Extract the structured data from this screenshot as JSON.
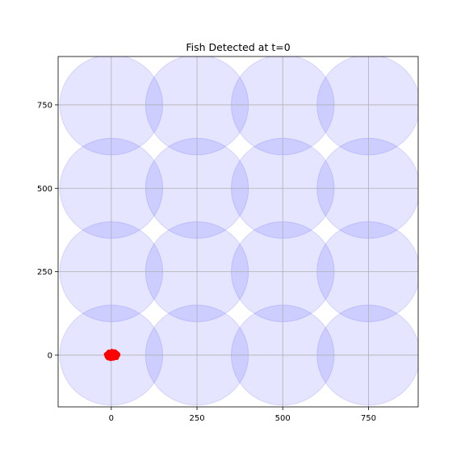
{
  "chart_data": {
    "type": "scatter",
    "title": "Fish Detected at t=0",
    "xlabel": "",
    "ylabel": "",
    "xlim": [
      -155,
      895
    ],
    "ylim": [
      -155,
      895
    ],
    "grid": true,
    "x_ticks": [
      0,
      250,
      500,
      750
    ],
    "y_ticks": [
      0,
      250,
      500,
      750
    ],
    "tick_labels_x": [
      "0",
      "250",
      "500",
      "750"
    ],
    "tick_labels_y": [
      "0",
      "250",
      "500",
      "750"
    ],
    "sensor_circles": {
      "radius": 150,
      "color": "#0000ff",
      "fill_opacity": 0.1,
      "centers": [
        [
          0,
          0
        ],
        [
          250,
          0
        ],
        [
          500,
          0
        ],
        [
          750,
          0
        ],
        [
          0,
          250
        ],
        [
          250,
          250
        ],
        [
          500,
          250
        ],
        [
          750,
          250
        ],
        [
          0,
          500
        ],
        [
          250,
          500
        ],
        [
          500,
          500
        ],
        [
          750,
          500
        ],
        [
          0,
          750
        ],
        [
          250,
          750
        ],
        [
          500,
          750
        ],
        [
          750,
          750
        ]
      ]
    },
    "fish_points": {
      "color": "#ff0000",
      "points": [
        [
          -14,
          2
        ],
        [
          -12,
          -4
        ],
        [
          -10,
          5
        ],
        [
          -8,
          -2
        ],
        [
          -6,
          6
        ],
        [
          -5,
          -7
        ],
        [
          -3,
          1
        ],
        [
          -1,
          8
        ],
        [
          0,
          -5
        ],
        [
          1,
          3
        ],
        [
          3,
          -8
        ],
        [
          4,
          6
        ],
        [
          5,
          0
        ],
        [
          7,
          -3
        ],
        [
          8,
          9
        ],
        [
          9,
          4
        ],
        [
          11,
          -6
        ],
        [
          12,
          1
        ],
        [
          14,
          -2
        ],
        [
          16,
          5
        ],
        [
          18,
          -1
        ],
        [
          -9,
          -8
        ],
        [
          2,
          11
        ],
        [
          -2,
          -10
        ],
        [
          10,
          10
        ],
        [
          6,
          -9
        ],
        [
          -7,
          9
        ],
        [
          13,
          7
        ],
        [
          19,
          2
        ],
        [
          15,
          -7
        ]
      ]
    }
  }
}
